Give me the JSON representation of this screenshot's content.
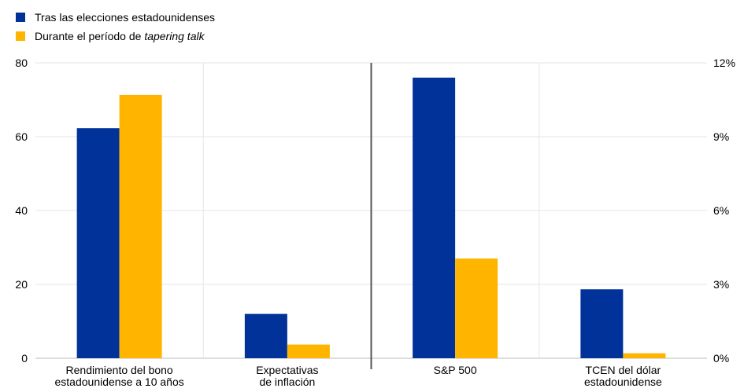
{
  "legend": {
    "items": [
      {
        "label": "Tras las elecciones estadounidenses",
        "color": "#003299"
      },
      {
        "label_prefix": "Durante el período de ",
        "label_italic": "tapering talk",
        "color": "#ffb400"
      }
    ]
  },
  "chart_data": {
    "type": "bar",
    "categories": [
      [
        "Rendimiento del bono",
        "estadounidense a 10 años"
      ],
      [
        "Expectativas",
        "de inflación"
      ],
      [
        "S&P 500"
      ],
      [
        "TCEN del dólar",
        "estadounidense"
      ]
    ],
    "left_axis": {
      "range": [
        0,
        80
      ],
      "ticks": [
        "0",
        "20",
        "40",
        "60",
        "80"
      ],
      "applies_to": [
        0,
        1
      ]
    },
    "right_axis": {
      "range": [
        0,
        12
      ],
      "ticks": [
        "0%",
        "3%",
        "6%",
        "9%",
        "12%"
      ],
      "applies_to": [
        2,
        3
      ]
    },
    "series": [
      {
        "name": "Tras las elecciones estadounidenses",
        "color": "#003299",
        "values": [
          62.3,
          12,
          11.4,
          2.8
        ]
      },
      {
        "name": "Durante el período de tapering talk",
        "color": "#ffb400",
        "values": [
          71.3,
          3.7,
          4.05,
          0.2
        ]
      }
    ],
    "grid": true,
    "divider_after_category": 1,
    "legend_position": "top-left"
  }
}
